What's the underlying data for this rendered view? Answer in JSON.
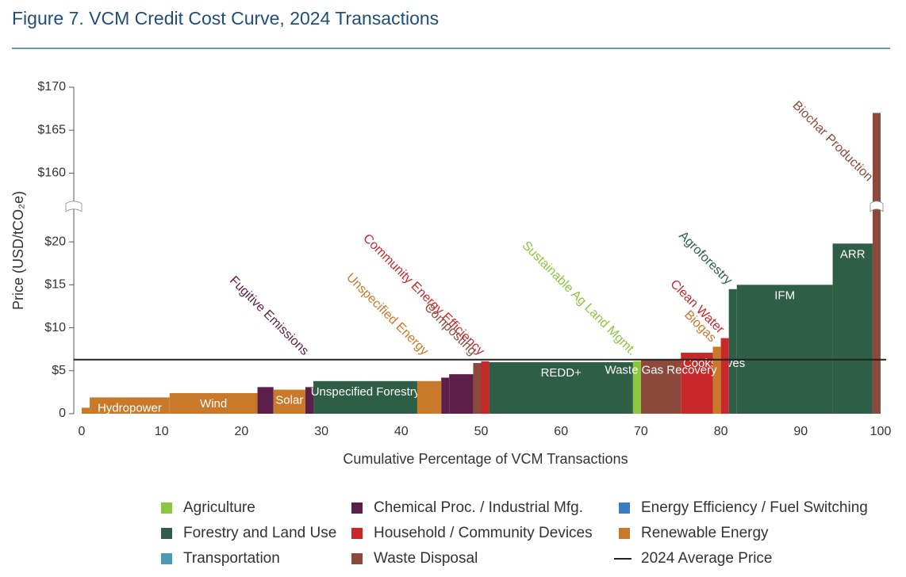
{
  "chart_data": {
    "type": "cost-curve",
    "title": "Figure 7. VCM Credit Cost Curve, 2024 Transactions",
    "x_label": "Cumulative Percentage of VCM Transactions",
    "y_label": "Price (USD/tCO₂e)",
    "xlim": [
      0,
      100
    ],
    "xticks": [
      0,
      10,
      20,
      30,
      40,
      50,
      60,
      70,
      80,
      90,
      100
    ],
    "ylim": [
      0,
      170
    ],
    "y_break": [
      24,
      156
    ],
    "yticks": [
      0,
      {
        "value": 5,
        "label": "$5"
      },
      {
        "value": 10,
        "label": "$10"
      },
      {
        "value": 15,
        "label": "$15"
      },
      {
        "value": 20,
        "label": "$20"
      },
      {
        "value": 160,
        "label": "$160"
      },
      {
        "value": 165,
        "label": "$165"
      },
      {
        "value": 170,
        "label": "$170"
      }
    ],
    "series": [
      {
        "name": "Agriculture",
        "color": "#8cc63f",
        "segments": [
          {
            "x": [
              69,
              70
            ],
            "value": 6.1,
            "label": "Sustainable Ag Land Mgmt."
          }
        ]
      },
      {
        "name": "Chemical Proc. / Industrial Mfg.",
        "color": "#5b1f4a",
        "segments": [
          {
            "x": [
              22,
              24
            ],
            "value": 3.1
          },
          {
            "x": [
              28,
              29
            ],
            "value": 3.1,
            "label": "Fugitive Emissions"
          },
          {
            "x": [
              45,
              46
            ],
            "value": 4.2
          },
          {
            "x": [
              46,
              49
            ],
            "value": 4.6
          }
        ]
      },
      {
        "name": "Energy Efficiency / Fuel Switching",
        "color": "#3a7dc4",
        "segments": []
      },
      {
        "name": "Forestry and Land Use",
        "color": "#2e5e45",
        "segments": [
          {
            "x": [
              29,
              42
            ],
            "value": 3.8,
            "label": "Unspecified Forestry"
          },
          {
            "x": [
              51,
              69
            ],
            "value": 6.0,
            "label": "REDD+"
          },
          {
            "x": [
              81,
              82
            ],
            "value": 14.5,
            "label": "Agroforestry"
          },
          {
            "x": [
              82,
              94
            ],
            "value": 15.0,
            "label": "IFM"
          },
          {
            "x": [
              94,
              99
            ],
            "value": 19.8,
            "label": "ARR"
          }
        ]
      },
      {
        "name": "Household / Community Devices",
        "color": "#c8282a",
        "segments": [
          {
            "x": [
              50,
              51
            ],
            "value": 6.1,
            "label": "Community Energy Efficiency"
          },
          {
            "x": [
              75,
              79
            ],
            "value": 7.1,
            "label": "Clean Cookstoves"
          },
          {
            "x": [
              80,
              81
            ],
            "value": 8.8,
            "label": "Clean Water"
          }
        ]
      },
      {
        "name": "Renewable Energy",
        "color": "#c87a2a",
        "segments": [
          {
            "x": [
              0,
              1
            ],
            "value": 0.7
          },
          {
            "x": [
              1,
              11
            ],
            "value": 1.9,
            "label": "Hydropower"
          },
          {
            "x": [
              11,
              22
            ],
            "value": 2.4,
            "label": "Wind"
          },
          {
            "x": [
              24,
              28
            ],
            "value": 2.8,
            "label": "Solar"
          },
          {
            "x": [
              42,
              45
            ],
            "value": 3.8,
            "label": "Unspecified Energy"
          },
          {
            "x": [
              79,
              80
            ],
            "value": 7.8,
            "label": "Biogas"
          }
        ]
      },
      {
        "name": "Transportation",
        "color": "#4a9ab5",
        "segments": []
      },
      {
        "name": "Waste Disposal",
        "color": "#8b4a3c",
        "segments": [
          {
            "x": [
              49,
              50
            ],
            "value": 5.9,
            "label": "Composting"
          },
          {
            "x": [
              70,
              75
            ],
            "value": 6.3,
            "label": "Waste Gas Recovery"
          },
          {
            "x": [
              99,
              100
            ],
            "value": 167,
            "label": "Biochar Production"
          }
        ]
      }
    ],
    "reference_line": {
      "name": "2024 Average Price",
      "value": 6.3,
      "color": "#222222"
    }
  }
}
